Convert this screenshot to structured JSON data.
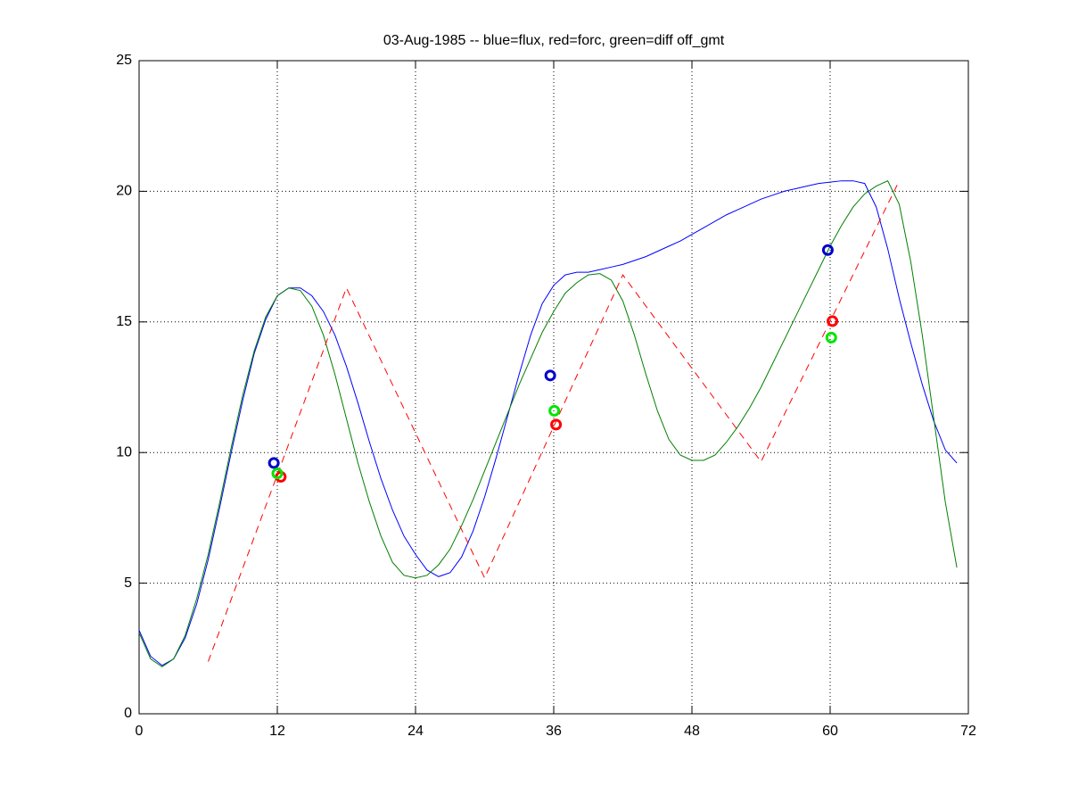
{
  "chart_data": {
    "type": "line",
    "title": "03-Aug-1985 -- blue=flux, red=forc, green=diff off_gmt",
    "x": [
      0,
      1,
      2,
      3,
      4,
      5,
      6,
      7,
      8,
      9,
      10,
      11,
      12,
      13,
      14,
      15,
      16,
      17,
      18,
      19,
      20,
      21,
      22,
      23,
      24,
      25,
      26,
      27,
      28,
      29,
      30,
      31,
      32,
      33,
      34,
      35,
      36,
      37,
      38,
      39,
      40,
      41,
      42,
      43,
      44,
      45,
      46,
      47,
      48,
      49,
      50,
      51,
      52,
      53,
      54,
      55,
      56,
      57,
      58,
      59,
      60,
      61,
      62,
      63,
      64,
      65,
      66,
      67,
      68,
      69,
      70,
      71
    ],
    "series": [
      {
        "color": "#0000ff",
        "linestyle": "solid",
        "values": [
          3.2,
          2.2,
          1.85,
          2.1,
          2.9,
          4.2,
          5.9,
          7.9,
          10.0,
          12.0,
          13.8,
          15.1,
          16.0,
          16.3,
          16.3,
          16.0,
          15.4,
          14.5,
          13.3,
          11.9,
          10.4,
          9.0,
          7.8,
          6.8,
          6.1,
          5.5,
          5.25,
          5.4,
          6.0,
          7.0,
          8.3,
          9.8,
          11.4,
          13.0,
          14.5,
          15.7,
          16.4,
          16.8,
          16.9,
          16.9,
          17.0,
          17.1,
          17.2,
          17.35,
          17.5,
          17.7,
          17.9,
          18.1,
          18.35,
          18.6,
          18.85,
          19.1,
          19.3,
          19.5,
          19.7,
          19.85,
          20.0,
          20.1,
          20.2,
          20.3,
          20.35,
          20.4,
          20.4,
          20.3,
          19.4,
          17.8,
          15.9,
          14.2,
          12.6,
          11.2,
          10.1,
          9.6
        ]
      },
      {
        "color": "#007f00",
        "linestyle": "solid",
        "values": [
          3.1,
          2.1,
          1.8,
          2.1,
          3.0,
          4.4,
          6.1,
          8.1,
          10.2,
          12.2,
          13.9,
          15.2,
          16.0,
          16.3,
          16.2,
          15.6,
          14.5,
          13.0,
          11.3,
          9.6,
          8.1,
          6.8,
          5.8,
          5.3,
          5.2,
          5.3,
          5.7,
          6.3,
          7.2,
          8.2,
          9.3,
          10.4,
          11.5,
          12.6,
          13.6,
          14.6,
          15.4,
          16.1,
          16.5,
          16.8,
          16.85,
          16.6,
          15.8,
          14.5,
          13.0,
          11.6,
          10.5,
          9.9,
          9.7,
          9.7,
          9.9,
          10.4,
          11.0,
          11.7,
          12.5,
          13.4,
          14.3,
          15.2,
          16.1,
          17.0,
          17.9,
          18.7,
          19.4,
          19.9,
          20.2,
          20.4,
          19.5,
          17.3,
          14.5,
          11.3,
          8.1,
          5.6
        ]
      },
      {
        "color": "#ff0000",
        "linestyle": "dashed",
        "x": [
          6,
          18,
          30,
          42,
          54,
          66
        ],
        "values": [
          2.0,
          16.3,
          5.2,
          16.8,
          9.65,
          20.4
        ]
      },
      {
        "type": "scatter",
        "color": "#0000cc",
        "x": [
          11.7,
          35.7,
          59.8
        ],
        "values": [
          9.6,
          12.95,
          17.75
        ]
      },
      {
        "type": "scatter",
        "color": "#ff0000",
        "x": [
          12.3,
          36.2,
          60.2
        ],
        "values": [
          9.07,
          11.07,
          15.03
        ]
      },
      {
        "type": "scatter",
        "color": "#00e600",
        "x": [
          12.0,
          36.05,
          60.1
        ],
        "values": [
          9.2,
          11.6,
          14.4
        ]
      }
    ],
    "xlim": [
      0,
      72
    ],
    "xticks": [
      0,
      12,
      24,
      36,
      48,
      60,
      72
    ],
    "ylim": [
      0,
      25
    ],
    "yticks": [
      0,
      5,
      10,
      15,
      20,
      25
    ],
    "grid": true
  }
}
